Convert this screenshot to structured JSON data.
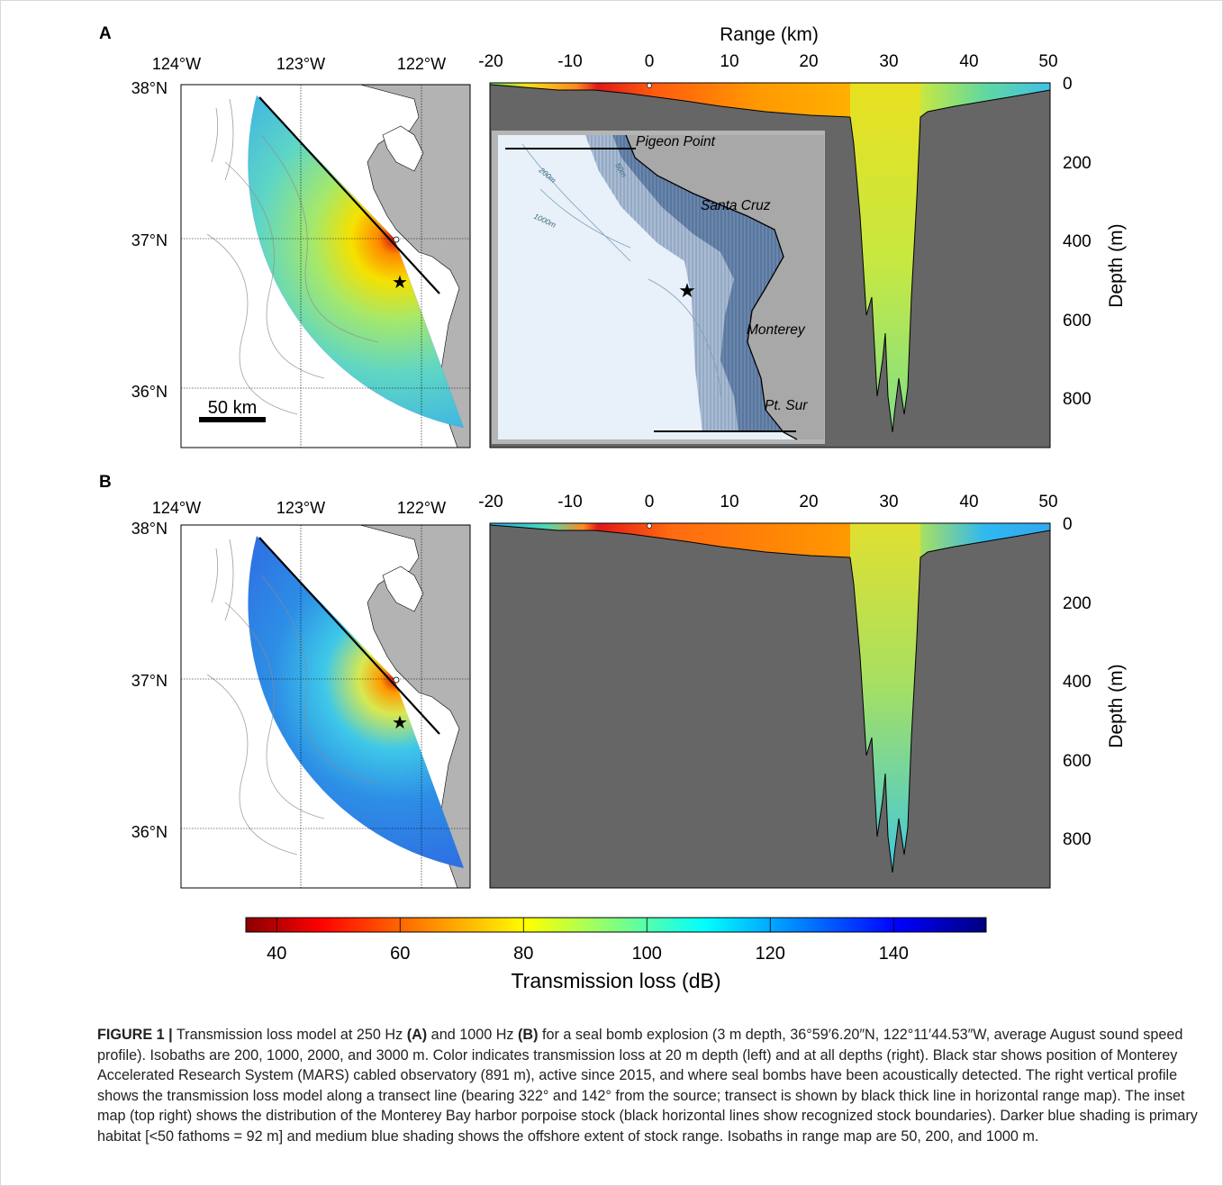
{
  "figure": {
    "panel_a_label": "A",
    "panel_b_label": "B",
    "range_axis_title": "Range (km)",
    "depth_axis_title": "Depth (m)",
    "range_ticks": [
      "-20",
      "-10",
      "0",
      "10",
      "20",
      "30",
      "40",
      "50"
    ],
    "depth_ticks": [
      "0",
      "200",
      "400",
      "600",
      "800"
    ],
    "lon_ticks": [
      "124°W",
      "123°W",
      "122°W"
    ],
    "lat_ticks": [
      "38°N",
      "37°N",
      "36°N"
    ],
    "scale_bar": "50 km",
    "inset_labels": {
      "pigeon_point": "Pigeon Point",
      "santa_cruz": "Santa Cruz",
      "monterey": "Monterey",
      "pt_sur": "Pt. Sur",
      "iso_50": "50m",
      "iso_200": "200m",
      "iso_1000": "1000m"
    },
    "colorbar_ticks": [
      "40",
      "60",
      "80",
      "100",
      "120",
      "140"
    ],
    "colorbar_title": "Transmission loss (dB)",
    "colors": {
      "land_map": "#b3b3b3",
      "land_profile": "#666666",
      "inset_water": "#e8f0fa",
      "inset_habitat": "#5f7ea6",
      "inset_range": "#9fb5cf"
    }
  },
  "colorbar": {
    "min": 35,
    "max": 155,
    "ticks": [
      40,
      60,
      80,
      100,
      120,
      140
    ]
  },
  "caption": {
    "label": "FIGURE 1 |",
    "seg1": " Transmission loss model at 250 Hz ",
    "a": "(A)",
    "seg2": " and 1000 Hz ",
    "b": "(B)",
    "seg3": " for a seal bomb explosion (3 m depth, 36°59′6.20″N, 122°11′44.53″W, average August sound speed profile). Isobaths are 200, 1000, 2000, and 3000 m. Color indicates transmission loss at 20 m depth (left) and at all depths (right). Black star shows position of Monterey Accelerated Research System (MARS) cabled observatory (891 m), active since 2015, and where seal bombs have been acoustically detected. The right vertical profile shows the transmission loss model along a transect line (bearing 322° and 142° from the source; transect is shown by black thick line in horizontal range map). The inset map (top right) shows the distribution of the Monterey Bay harbor porpoise stock (black horizontal lines show recognized stock boundaries). Darker blue shading is primary habitat [<50 fathoms = 92 m] and medium blue shading shows the offshore extent of stock range. Isobaths in range map are 50, 200, and 1000 m."
  }
}
